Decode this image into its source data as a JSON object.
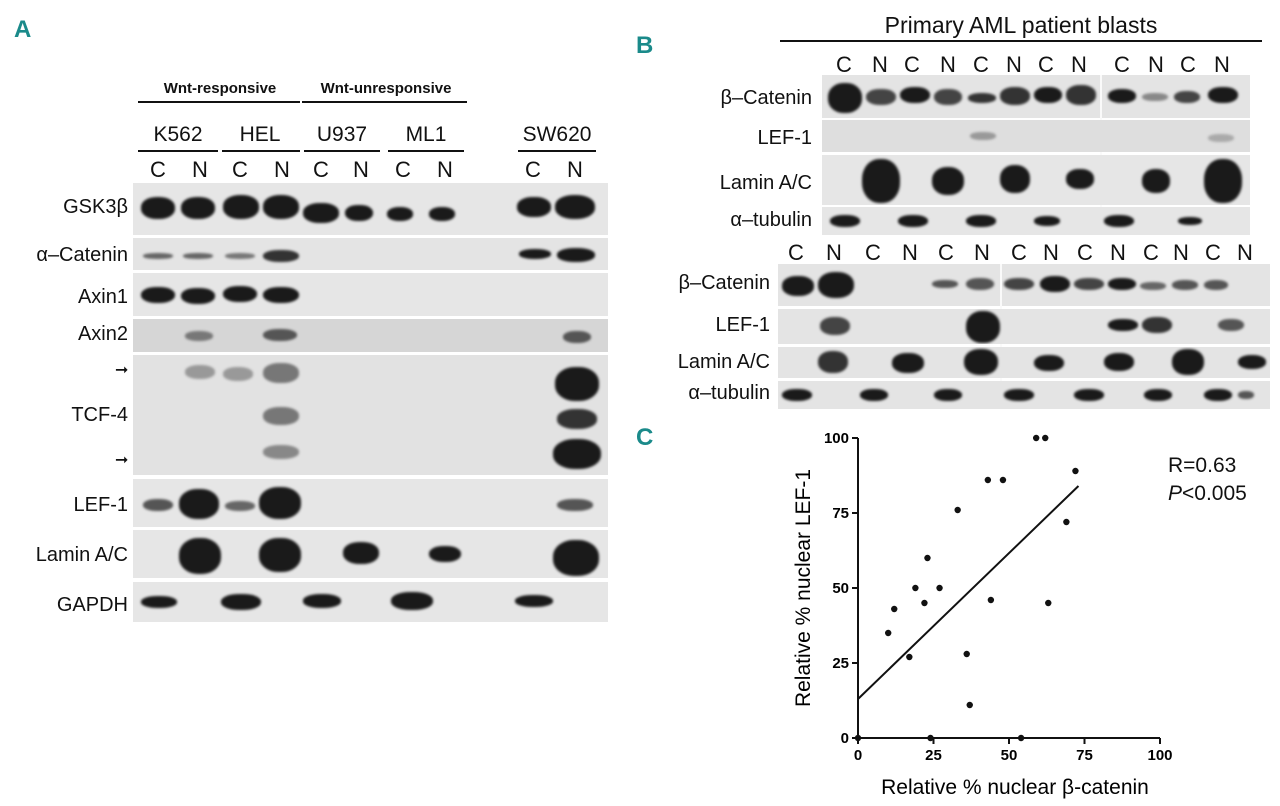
{
  "panelA": {
    "letter": "A",
    "group_responsive": "Wnt-responsive",
    "group_unresponsive": "Wnt-unresponsive",
    "cell_lines": [
      "K562",
      "HEL",
      "U937",
      "ML1",
      "SW620"
    ],
    "lanes": [
      "C",
      "N",
      "C",
      "N",
      "C",
      "N",
      "C",
      "N",
      "C",
      "N"
    ],
    "rows": [
      "GSK3β",
      "α–Catenin",
      "Axin1",
      "Axin2",
      "TCF-4",
      "LEF-1",
      "Lamin A/C",
      "GAPDH"
    ]
  },
  "panelB": {
    "letter": "B",
    "title": "Primary AML patient blasts",
    "lanes_top": [
      "C",
      "N",
      "C",
      "N",
      "C",
      "N",
      "C",
      "N",
      "C",
      "N",
      "C",
      "N"
    ],
    "lanes_bottom": [
      "C",
      "N",
      "C",
      "N",
      "C",
      "N",
      "C",
      "N",
      "C",
      "N",
      "C",
      "N",
      "C",
      "N",
      "C",
      "N"
    ],
    "rows": [
      "β–Catenin",
      "LEF-1",
      "Lamin A/C",
      "α–tubulin"
    ]
  },
  "panelC": {
    "letter": "C",
    "stat_r": "R=0.63",
    "stat_p_label": "P",
    "stat_p_value": "<0.005"
  },
  "chart_data": {
    "type": "scatter",
    "xlabel": "Relative % nuclear β-catenin",
    "ylabel": "Relative % nuclear LEF-1",
    "xlim": [
      0,
      100
    ],
    "ylim": [
      0,
      100
    ],
    "xticks": [
      "0",
      "25",
      "50",
      "75",
      "100"
    ],
    "yticks": [
      "0",
      "25",
      "50",
      "75",
      "100"
    ],
    "points": [
      [
        0,
        0
      ],
      [
        10,
        35
      ],
      [
        12,
        43
      ],
      [
        17,
        27
      ],
      [
        19,
        50
      ],
      [
        22,
        45
      ],
      [
        23,
        60
      ],
      [
        24,
        0
      ],
      [
        27,
        50
      ],
      [
        33,
        76
      ],
      [
        36,
        28
      ],
      [
        37,
        11
      ],
      [
        43,
        86
      ],
      [
        44,
        46
      ],
      [
        48,
        86
      ],
      [
        54,
        0
      ],
      [
        59,
        100
      ],
      [
        62,
        100
      ],
      [
        63,
        45
      ],
      [
        69,
        72
      ],
      [
        72,
        89
      ]
    ],
    "fit_line": [
      [
        0,
        13
      ],
      [
        73,
        84
      ]
    ],
    "grid": false
  }
}
